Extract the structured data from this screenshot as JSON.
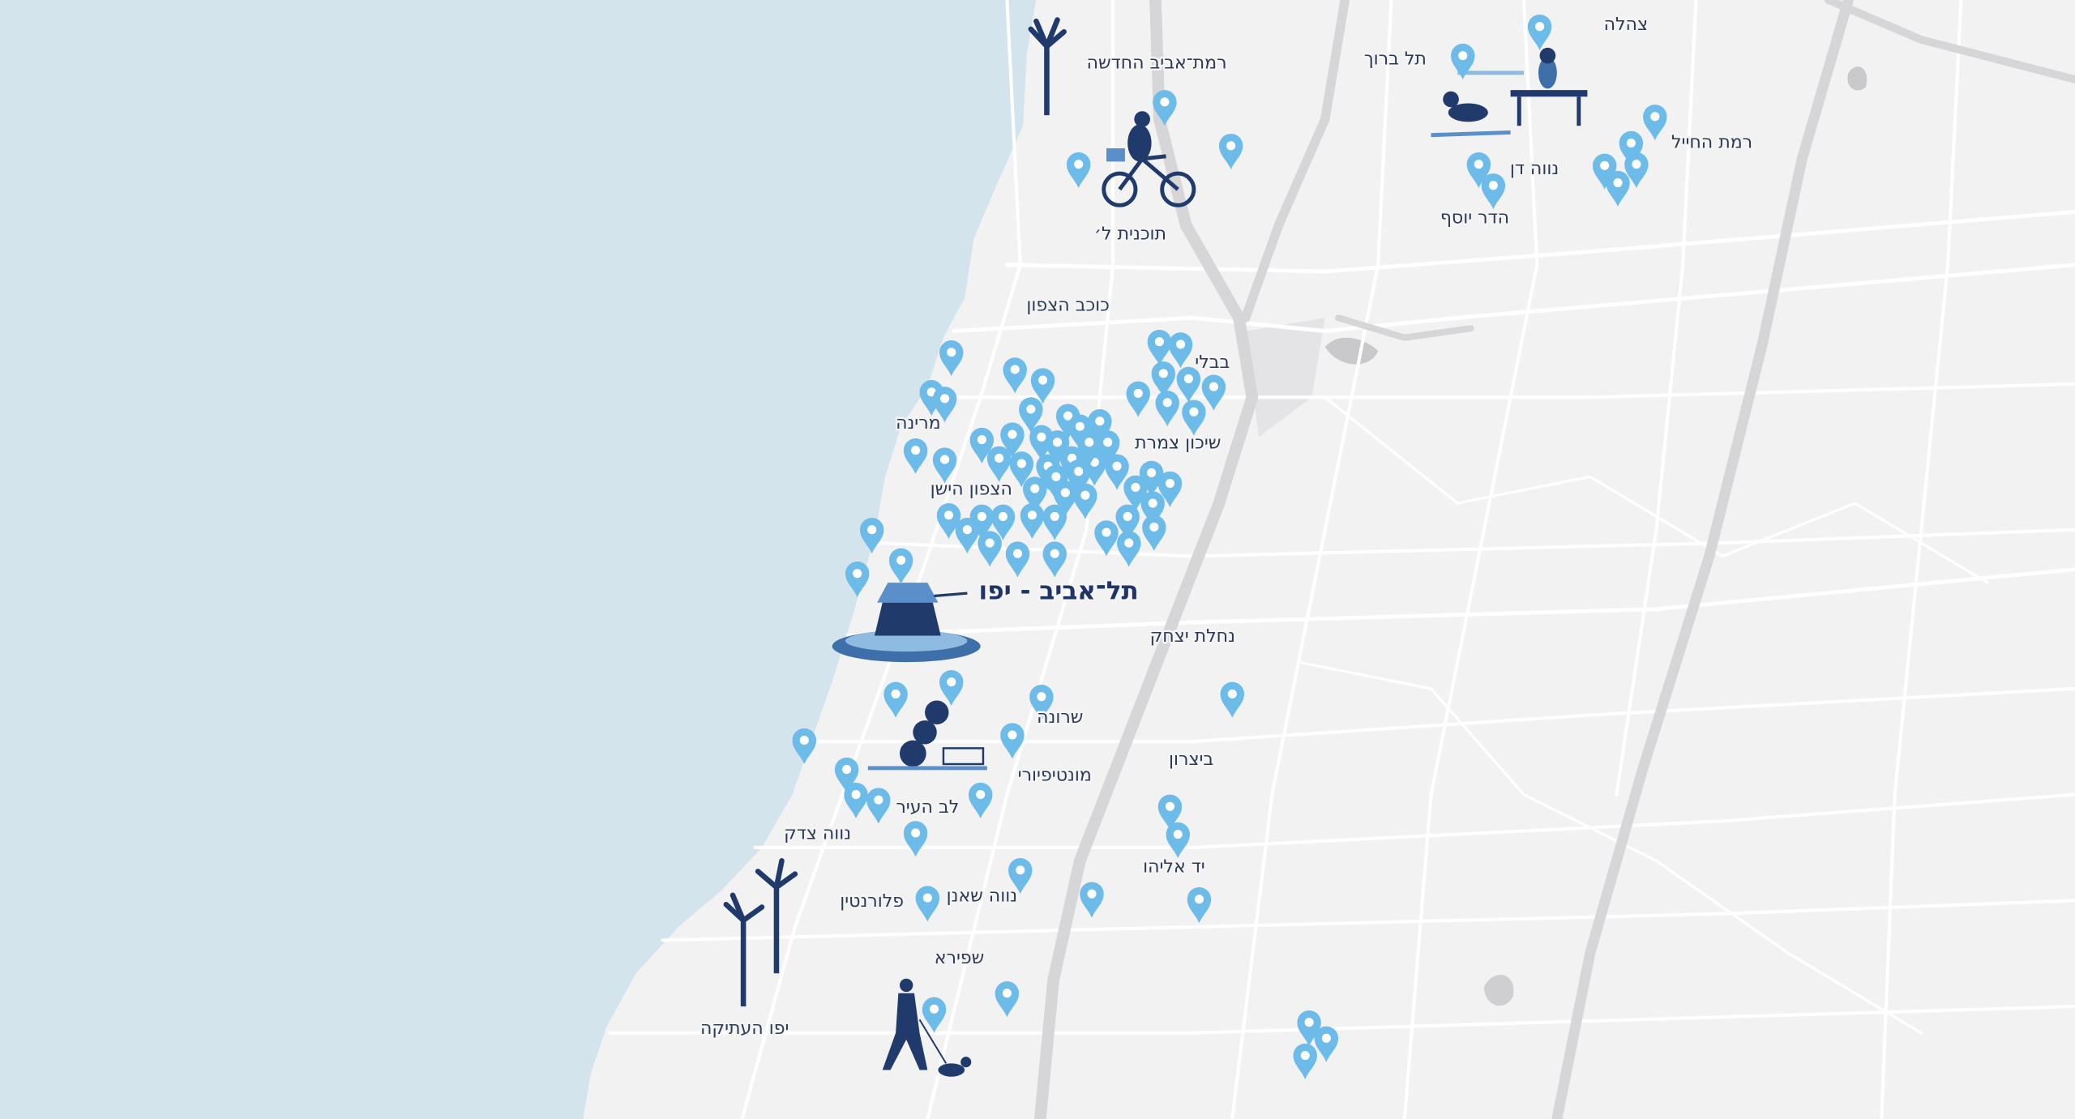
{
  "map": {
    "title": "תל־אביב - יפו",
    "labels": [
      "צהלה",
      "תל ברוך",
      "רמת־אביב החדשה",
      "רמת החייל",
      "נווה דן",
      "הדר יוסף",
      "תוכנית ל׳",
      "כוכב הצפון",
      "בבלי",
      "מרינה",
      "שיכון צמרת",
      "הצפון הישן",
      "נחלת יצחק",
      "שרונה",
      "ביצרון",
      "מונטיפיורי",
      "לב העיר",
      "נווה צדק",
      "יד אליהו",
      "פלורנטין",
      "נווה שאנן",
      "שפירא",
      "יפו העתיקה"
    ]
  }
}
